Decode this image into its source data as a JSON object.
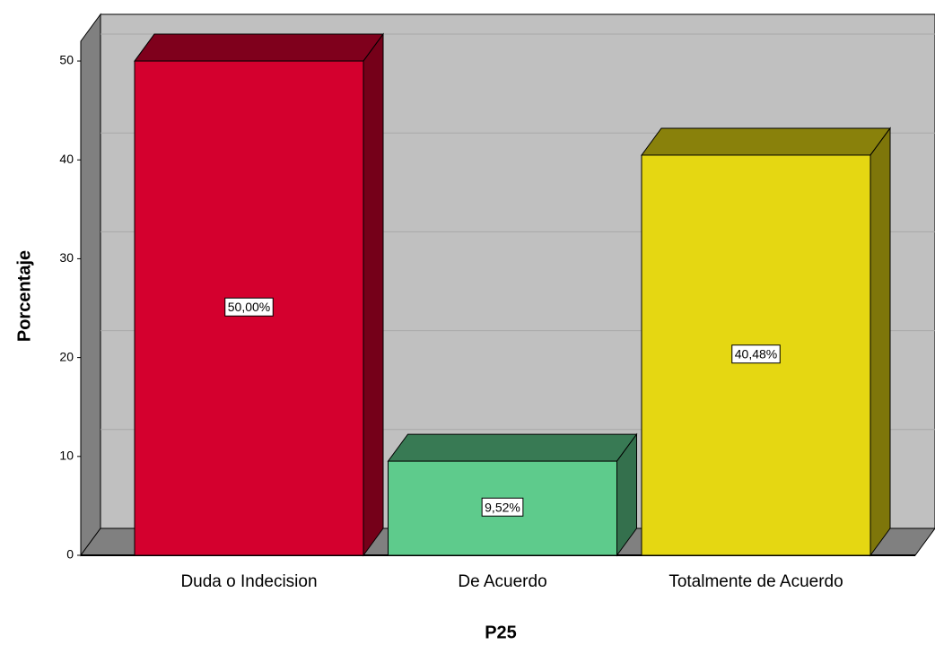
{
  "chart_data": {
    "type": "bar3d",
    "x_label": "P25",
    "y_label": "Porcentaje",
    "categories": [
      "Duda o Indecision",
      "De Acuerdo",
      "Totalmente de Acuerdo"
    ],
    "values": [
      50,
      9.52,
      40.48
    ],
    "value_labels": [
      "50,00%",
      "9,52%",
      "40,48%"
    ],
    "colors": [
      "#d4002e",
      "#5ecb8c",
      "#e5d712"
    ],
    "ylim": [
      0,
      52
    ],
    "yticks": [
      0,
      10,
      20,
      30,
      40,
      50
    ],
    "grid": true
  }
}
